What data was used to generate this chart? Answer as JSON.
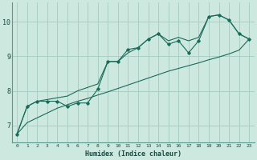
{
  "xlabel": "Humidex (Indice chaleur)",
  "bg_color": "#cce8df",
  "grid_color": "#aacfc5",
  "line_color": "#1a6b5a",
  "xlim": [
    -0.5,
    23.5
  ],
  "ylim": [
    6.5,
    10.55
  ],
  "xticks": [
    0,
    1,
    2,
    3,
    4,
    5,
    6,
    7,
    8,
    9,
    10,
    11,
    12,
    13,
    14,
    15,
    16,
    17,
    18,
    19,
    20,
    21,
    22,
    23
  ],
  "yticks": [
    7,
    8,
    9,
    10
  ],
  "series_main": [
    6.75,
    7.55,
    7.7,
    7.7,
    7.7,
    7.55,
    7.65,
    7.65,
    8.05,
    8.85,
    8.85,
    9.2,
    9.25,
    9.5,
    9.65,
    9.35,
    9.45,
    9.1,
    9.45,
    10.15,
    10.2,
    10.05,
    9.65,
    9.5
  ],
  "series_linear_low": [
    6.75,
    7.08,
    7.22,
    7.36,
    7.5,
    7.6,
    7.7,
    7.78,
    7.88,
    7.97,
    8.07,
    8.17,
    8.27,
    8.37,
    8.47,
    8.57,
    8.65,
    8.73,
    8.81,
    8.9,
    8.98,
    9.07,
    9.18,
    9.5
  ],
  "series_linear_high": [
    6.75,
    7.55,
    7.7,
    7.75,
    7.8,
    7.85,
    8.0,
    8.1,
    8.2,
    8.85,
    8.85,
    9.1,
    9.25,
    9.5,
    9.65,
    9.45,
    9.55,
    9.45,
    9.55,
    10.15,
    10.2,
    10.05,
    9.65,
    9.5
  ]
}
